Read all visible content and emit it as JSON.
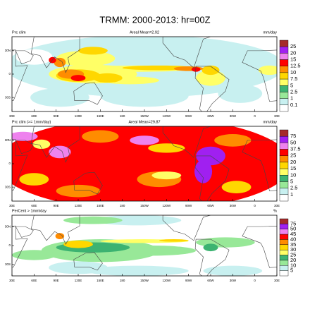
{
  "title": "TRMM: 2000-2013: hr=00Z",
  "lat_labels": [
    "30N",
    "0",
    "30S"
  ],
  "lon_labels": [
    "30E",
    "60E",
    "90E",
    "120E",
    "150E",
    "180",
    "150W",
    "120W",
    "90W",
    "60W",
    "30W",
    "0",
    "30E"
  ],
  "panels": [
    {
      "left_label": "Prc clim",
      "center_label": "Areal Mean=2.92",
      "right_label": "mm/day",
      "colorbar": {
        "labels": [
          "25",
          "20",
          "15",
          "12.5",
          "10",
          "7.5",
          "5",
          "2.5",
          "1",
          "0.1"
        ],
        "colors": [
          "#a52a2a",
          "#a020f0",
          "#ee82ee",
          "#ff0000",
          "#ff8c00",
          "#ffd700",
          "#ffff66",
          "#3cb371",
          "#98e898",
          "#c8f0f0",
          "#ffffff"
        ]
      }
    },
    {
      "left_label": "Prc clim (>= 1mm/day)",
      "center_label": "Areal Mean=29.87",
      "right_label": "mm/day",
      "colorbar": {
        "labels": [
          "75",
          "50",
          "37.5",
          "25",
          "20",
          "15",
          "10",
          "5",
          "2.5",
          "1"
        ],
        "colors": [
          "#a52a2a",
          "#a020f0",
          "#ee82ee",
          "#ff0000",
          "#ff8c00",
          "#ffd700",
          "#ffff66",
          "#3cb371",
          "#98e898",
          "#c8f0f0",
          "#ffffff"
        ]
      }
    },
    {
      "left_label": "PerCent > 1mm/day",
      "right_label": "%",
      "colorbar": {
        "labels": [
          "75",
          "50",
          "45",
          "40",
          "35",
          "30",
          "25",
          "20",
          "10",
          "5"
        ],
        "colors": [
          "#a52a2a",
          "#a020f0",
          "#ee82ee",
          "#ff0000",
          "#ff8c00",
          "#ffd700",
          "#ffff66",
          "#3cb371",
          "#98e898",
          "#c8f0f0",
          "#ffffff"
        ]
      }
    }
  ]
}
